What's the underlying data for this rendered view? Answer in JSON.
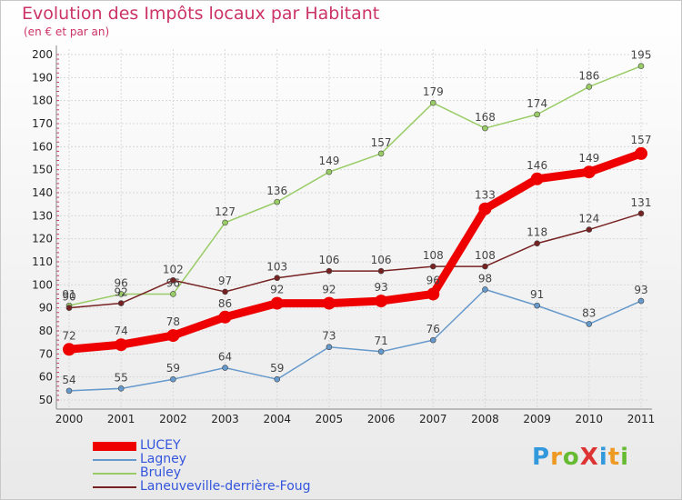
{
  "chart_data": {
    "type": "line",
    "title": "Evolution des Impôts locaux par Habitant",
    "subtitle": "(en € et par an)",
    "x": [
      "2000",
      "2001",
      "2002",
      "2003",
      "2004",
      "2005",
      "2006",
      "2007",
      "2008",
      "2009",
      "2010",
      "2011"
    ],
    "ylim": [
      50,
      200
    ],
    "yticks": [
      50,
      60,
      70,
      80,
      90,
      100,
      110,
      120,
      130,
      140,
      150,
      160,
      170,
      180,
      190,
      200
    ],
    "grid": true,
    "legend_position": "bottom-left",
    "series": [
      {
        "name": "LUCEY",
        "color": "#ee0000",
        "values": [
          72,
          74,
          78,
          86,
          92,
          92,
          93,
          96,
          133,
          146,
          149,
          157
        ]
      },
      {
        "name": "Lagney",
        "color": "#6699cc",
        "values": [
          54,
          55,
          59,
          64,
          59,
          73,
          71,
          76,
          98,
          91,
          83,
          93
        ]
      },
      {
        "name": "Bruley",
        "color": "#99cc66",
        "values": [
          91,
          96,
          96,
          127,
          136,
          149,
          157,
          179,
          168,
          174,
          186,
          195
        ]
      },
      {
        "name": "Laneuveville-derrière-Foug",
        "color": "#772222",
        "values": [
          90,
          92,
          102,
          97,
          103,
          106,
          106,
          108,
          108,
          118,
          124,
          131
        ]
      }
    ]
  },
  "logo": {
    "text": "ProXiti"
  }
}
